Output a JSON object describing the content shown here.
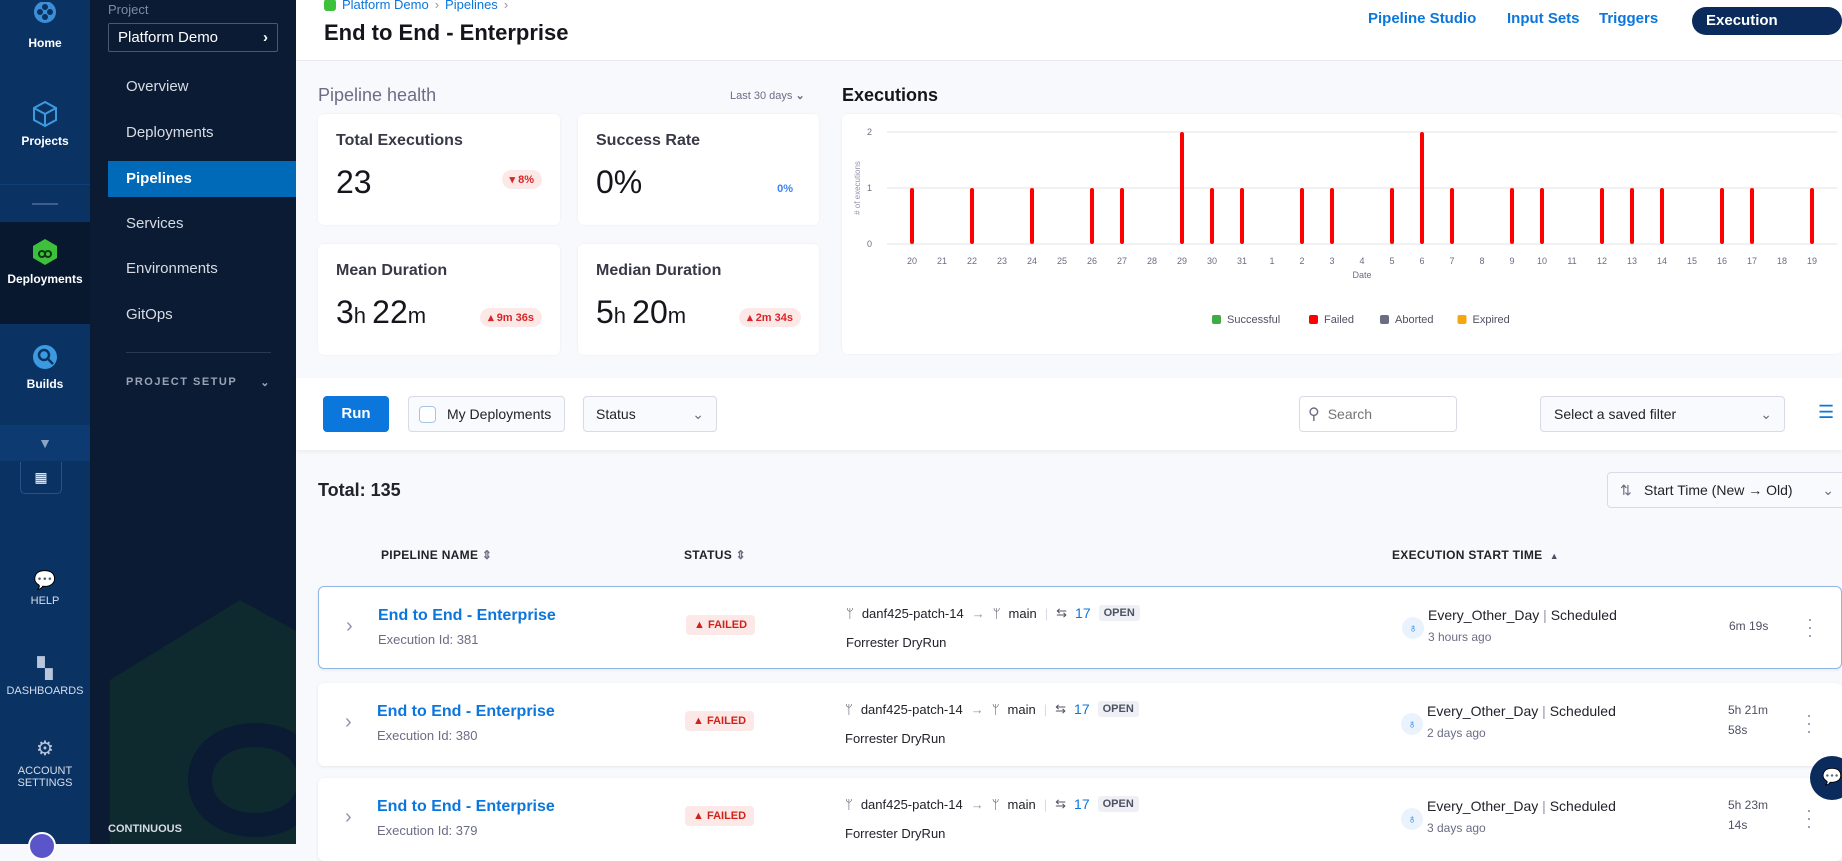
{
  "rail": {
    "items": [
      {
        "label": "Home"
      },
      {
        "label": "Projects"
      },
      {
        "label": "Deployments"
      },
      {
        "label": "Builds"
      },
      {
        "label": "HELP"
      },
      {
        "label": "DASHBOARDS"
      },
      {
        "label": "ACCOUNT SETTINGS"
      }
    ]
  },
  "sidebar": {
    "project_label": "Project",
    "project_name": "Platform Demo",
    "items": [
      {
        "label": "Overview"
      },
      {
        "label": "Deployments"
      },
      {
        "label": "Pipelines"
      },
      {
        "label": "Services"
      },
      {
        "label": "Environments"
      },
      {
        "label": "GitOps"
      }
    ],
    "section": "PROJECT SETUP",
    "footer": "CONTINUOUS"
  },
  "header": {
    "breadcrumb": [
      "Platform Demo",
      "Pipelines"
    ],
    "title": "End to End - Enterprise",
    "tabs": [
      "Pipeline Studio",
      "Input Sets",
      "Triggers",
      "Execution History"
    ],
    "active_tab": "Execution History"
  },
  "health": {
    "title": "Pipeline health",
    "range": "Last 30 days",
    "cards": [
      {
        "title": "Total Executions",
        "value": "23",
        "delta": "8%",
        "delta_dir": "down"
      },
      {
        "title": "Success Rate",
        "value": "0%",
        "delta": "0%"
      },
      {
        "title": "Mean Duration",
        "value_h": "3",
        "value_m": "22",
        "delta": "9m 36s",
        "delta_dir": "up"
      },
      {
        "title": "Median Duration",
        "value_h": "5",
        "value_m": "20",
        "delta": "2m 34s",
        "delta_dir": "up"
      }
    ]
  },
  "chart_data": {
    "type": "bar",
    "title": "Executions",
    "xlabel": "Date",
    "ylabel": "# of executions",
    "ylim": [
      0,
      2
    ],
    "yticks": [
      0,
      1,
      2
    ],
    "grid": true,
    "legend_position": "bottom",
    "categories": [
      "20",
      "21",
      "22",
      "23",
      "24",
      "25",
      "26",
      "27",
      "28",
      "29",
      "30",
      "31",
      "1",
      "2",
      "3",
      "4",
      "5",
      "6",
      "7",
      "8",
      "9",
      "10",
      "11",
      "12",
      "13",
      "14",
      "15",
      "16",
      "17",
      "18",
      "19"
    ],
    "series": [
      {
        "name": "Successful",
        "color": "#42ab45",
        "values": [
          0,
          0,
          0,
          0,
          0,
          0,
          0,
          0,
          0,
          0,
          0,
          0,
          0,
          0,
          0,
          0,
          0,
          0,
          0,
          0,
          0,
          0,
          0,
          0,
          0,
          0,
          0,
          0,
          0,
          0,
          0
        ]
      },
      {
        "name": "Failed",
        "color": "#ff0000",
        "values": [
          1,
          0,
          1,
          0,
          1,
          0,
          1,
          1,
          0,
          2,
          1,
          1,
          0,
          1,
          1,
          0,
          1,
          2,
          1,
          0,
          1,
          1,
          0,
          1,
          1,
          1,
          0,
          1,
          1,
          0,
          1
        ]
      },
      {
        "name": "Aborted",
        "color": "#6b6d85",
        "values": [
          0,
          0,
          0,
          0,
          0,
          0,
          0,
          0,
          0,
          0,
          0,
          0,
          0,
          0,
          0,
          0,
          0,
          0,
          0,
          0,
          0,
          0,
          0,
          0,
          0,
          0,
          0,
          0,
          0,
          0,
          0
        ]
      },
      {
        "name": "Expired",
        "color": "#f6a610",
        "values": [
          0,
          0,
          0,
          0,
          0,
          0,
          0,
          0,
          0,
          0,
          0,
          0,
          0,
          0,
          0,
          0,
          0,
          0,
          0,
          0,
          0,
          0,
          0,
          0,
          0,
          0,
          0,
          0,
          0,
          0,
          0
        ]
      }
    ]
  },
  "toolbar": {
    "run": "Run",
    "my_deployments": "My Deployments",
    "status": "Status",
    "search_placeholder": "Search",
    "saved_filter": "Select a saved filter"
  },
  "list": {
    "total": "Total: 135",
    "sort": "Start Time (New → Old)",
    "columns": [
      "PIPELINE NAME",
      "STATUS",
      "EXECUTION START TIME"
    ],
    "rows": [
      {
        "name": "End to End - Enterprise",
        "exec_id": "Execution Id: 381",
        "status": "FAILED",
        "source_branch": "danf425-patch-14",
        "target_branch": "main",
        "pr": "17",
        "pr_state": "OPEN",
        "message": "Forrester DryRun",
        "trigger": "Every_Other_Day",
        "trigger_type": "Scheduled",
        "ago": "3 hours ago",
        "duration": [
          "6m 19s"
        ]
      },
      {
        "name": "End to End - Enterprise",
        "exec_id": "Execution Id: 380",
        "status": "FAILED",
        "source_branch": "danf425-patch-14",
        "target_branch": "main",
        "pr": "17",
        "pr_state": "OPEN",
        "message": "Forrester DryRun",
        "trigger": "Every_Other_Day",
        "trigger_type": "Scheduled",
        "ago": "2 days ago",
        "duration": [
          "5h 21m",
          "58s"
        ]
      },
      {
        "name": "End to End - Enterprise",
        "exec_id": "Execution Id: 379",
        "status": "FAILED",
        "source_branch": "danf425-patch-14",
        "target_branch": "main",
        "pr": "17",
        "pr_state": "OPEN",
        "message": "Forrester DryRun",
        "trigger": "Every_Other_Day",
        "trigger_type": "Scheduled",
        "ago": "3 days ago",
        "duration": [
          "5h 23m",
          "14s"
        ]
      }
    ]
  }
}
